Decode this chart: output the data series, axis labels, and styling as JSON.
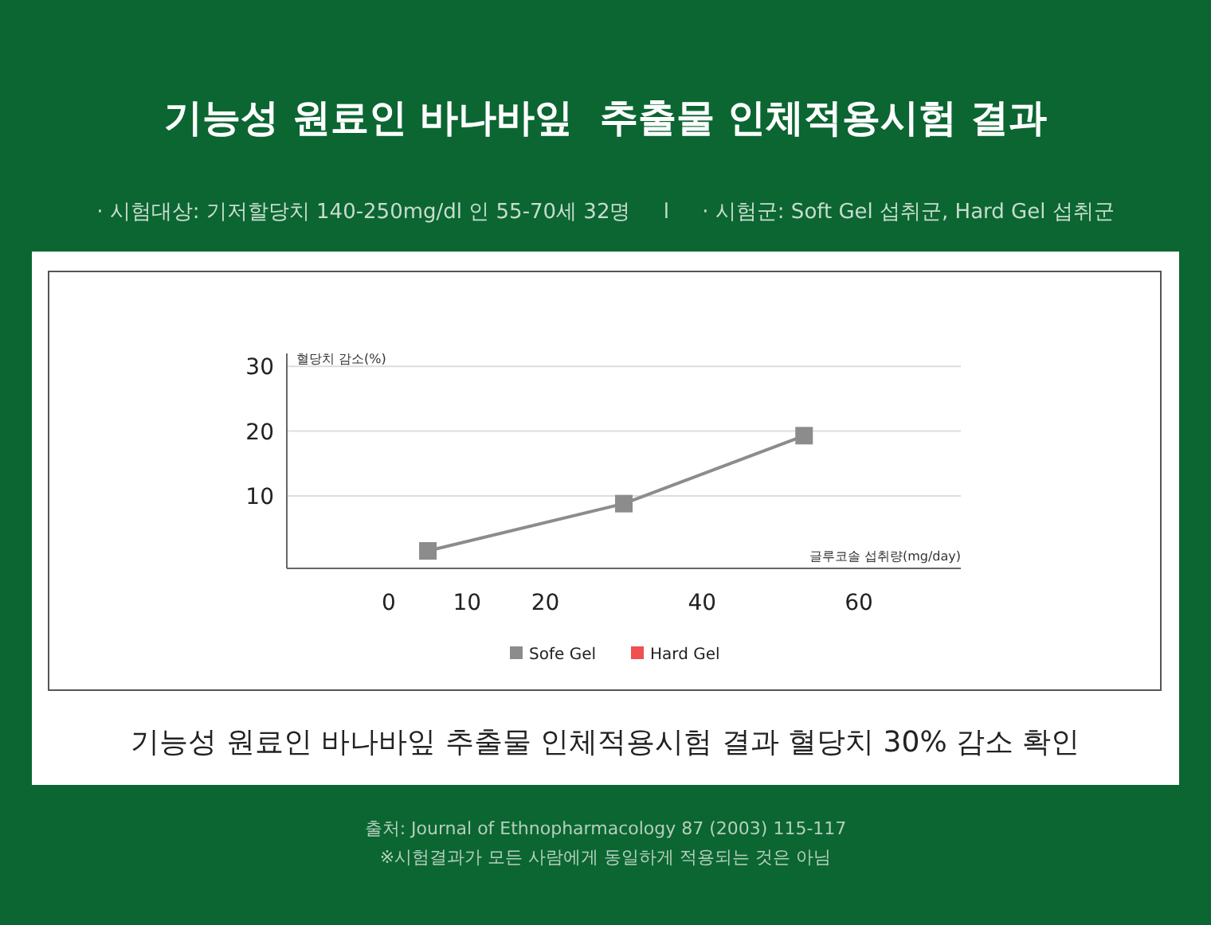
{
  "chart_data": {
    "type": "line",
    "title": "기능성 원료인 바나바잎  추출물 인체적용시험 결과",
    "subtitle": "· 시험대상: 기저할당치 140-250mg/dl 인 55-70세 32명     l     · 시험군: Soft Gel 섭취군, Hard Gel 섭취군",
    "xlabel": "글루코솔 섭취량(mg/day)",
    "ylabel": "혈당치 감소(%)",
    "x": [
      5,
      30,
      53
    ],
    "series": [
      {
        "name": "Sofe Gel",
        "color": "#8c8c8c",
        "values": [
          1.5,
          8.8,
          19.3
        ]
      },
      {
        "name": "Hard Gel",
        "color": "#f05050",
        "values": [
          null,
          null,
          null
        ]
      }
    ],
    "xlim": [
      -13,
      73
    ],
    "xticks": [
      0,
      10,
      20,
      40,
      60
    ],
    "ylim": [
      -1.2,
      32
    ],
    "yticks": [
      10,
      20,
      30
    ],
    "grid": "y",
    "marker": "square",
    "legend": "bottom",
    "annotations": [
      "기능성 원료인 바나바잎 추출물 인체적용시험 결과 혈당치 30% 감소 확인",
      "출처: Journal of Ethnopharmacology 87 (2003) 115-117",
      "※시험결과가 모든 사람에게 동일하게 적용되는 것은 아님"
    ]
  }
}
